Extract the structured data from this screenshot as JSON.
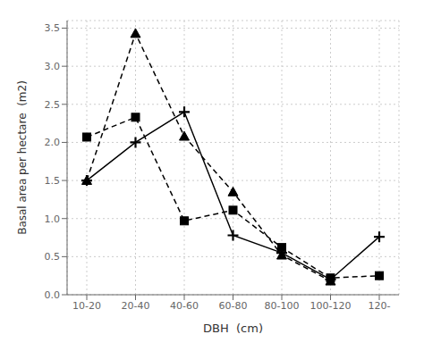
{
  "chart_data": {
    "type": "line",
    "categories": [
      "10-20",
      "20-40",
      "40-60",
      "60-80",
      "80-100",
      "100-120",
      "120-"
    ],
    "series": [
      {
        "color": "#000000",
        "marker": "triangle",
        "line_style": "dashed",
        "values": [
          1.5,
          3.43,
          2.08,
          1.35,
          0.52,
          0.18,
          null
        ]
      },
      {
        "color": "#000000",
        "marker": "square",
        "line_style": "dashed",
        "values": [
          2.07,
          2.33,
          0.97,
          1.11,
          0.62,
          0.22,
          0.25
        ]
      },
      {
        "color": "#000000",
        "marker": "plus",
        "line_style": "solid",
        "values": [
          1.5,
          2.0,
          2.4,
          0.78,
          0.55,
          0.2,
          0.76
        ]
      }
    ],
    "xlabel": "DBH  (cm)",
    "ylabel": "Basal area per hectare  (m2)",
    "ylim": [
      0,
      3.6
    ],
    "yticks": [
      {
        "value": 0,
        "label": "0.0"
      },
      0.5,
      {
        "value": 1,
        "label": "1.0"
      },
      1.5,
      {
        "value": 2,
        "label": "2.0"
      },
      2.5,
      {
        "value": 3,
        "label": "3.0"
      },
      3.5
    ],
    "grid": true
  }
}
